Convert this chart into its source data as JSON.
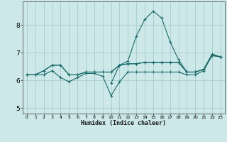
{
  "xlabel": "Humidex (Indice chaleur)",
  "background_color": "#cce8e8",
  "grid_color": "#aacccc",
  "line_color": "#1a6b6b",
  "xlim": [
    -0.5,
    23.5
  ],
  "ylim": [
    4.8,
    8.85
  ],
  "yticks": [
    5,
    6,
    7,
    8
  ],
  "xtick_labels": [
    "0",
    "1",
    "2",
    "3",
    "4",
    "5",
    "6",
    "7",
    "8",
    "9",
    "10",
    "11",
    "12",
    "13",
    "14",
    "15",
    "16",
    "17",
    "18",
    "19",
    "20",
    "21",
    "22",
    "23"
  ],
  "series_flat1": {
    "x": [
      0,
      1,
      2,
      3,
      4,
      5,
      6,
      7,
      8,
      9,
      10,
      11,
      12,
      13,
      14,
      15,
      16,
      17,
      18,
      19,
      20,
      21,
      22,
      23
    ],
    "y": [
      6.2,
      6.2,
      6.35,
      6.55,
      6.55,
      6.2,
      6.2,
      6.3,
      6.3,
      6.3,
      6.3,
      6.55,
      6.6,
      6.6,
      6.65,
      6.65,
      6.65,
      6.65,
      6.65,
      6.3,
      6.3,
      6.4,
      6.9,
      6.85
    ]
  },
  "series_flat2": {
    "x": [
      0,
      1,
      2,
      3,
      4,
      5,
      6,
      7,
      8,
      9,
      10,
      11,
      12,
      13,
      14,
      15,
      16,
      17,
      18,
      19,
      20,
      21,
      22,
      23
    ],
    "y": [
      6.2,
      6.2,
      6.35,
      6.55,
      6.55,
      6.2,
      6.2,
      6.3,
      6.3,
      6.3,
      6.3,
      6.55,
      6.6,
      6.6,
      6.65,
      6.65,
      6.65,
      6.65,
      6.65,
      6.3,
      6.3,
      6.4,
      6.9,
      6.85
    ]
  },
  "series_low": {
    "x": [
      0,
      1,
      2,
      3,
      4,
      5,
      6,
      7,
      8,
      9,
      10,
      11,
      12,
      13,
      14,
      15,
      16,
      17,
      18,
      19,
      20,
      21,
      22,
      23
    ],
    "y": [
      6.2,
      6.2,
      6.2,
      6.35,
      6.1,
      5.95,
      6.1,
      6.25,
      6.25,
      6.15,
      5.45,
      5.95,
      6.3,
      6.3,
      6.3,
      6.3,
      6.3,
      6.3,
      6.3,
      6.2,
      6.2,
      6.35,
      6.9,
      6.85
    ]
  },
  "series_spike": {
    "x": [
      10,
      11,
      12,
      13,
      14,
      15,
      16,
      17,
      18,
      19,
      20,
      21,
      22,
      23
    ],
    "y": [
      5.9,
      6.55,
      6.7,
      7.6,
      8.2,
      8.5,
      8.25,
      7.4,
      6.75,
      6.3,
      6.3,
      6.4,
      6.95,
      6.85
    ]
  }
}
